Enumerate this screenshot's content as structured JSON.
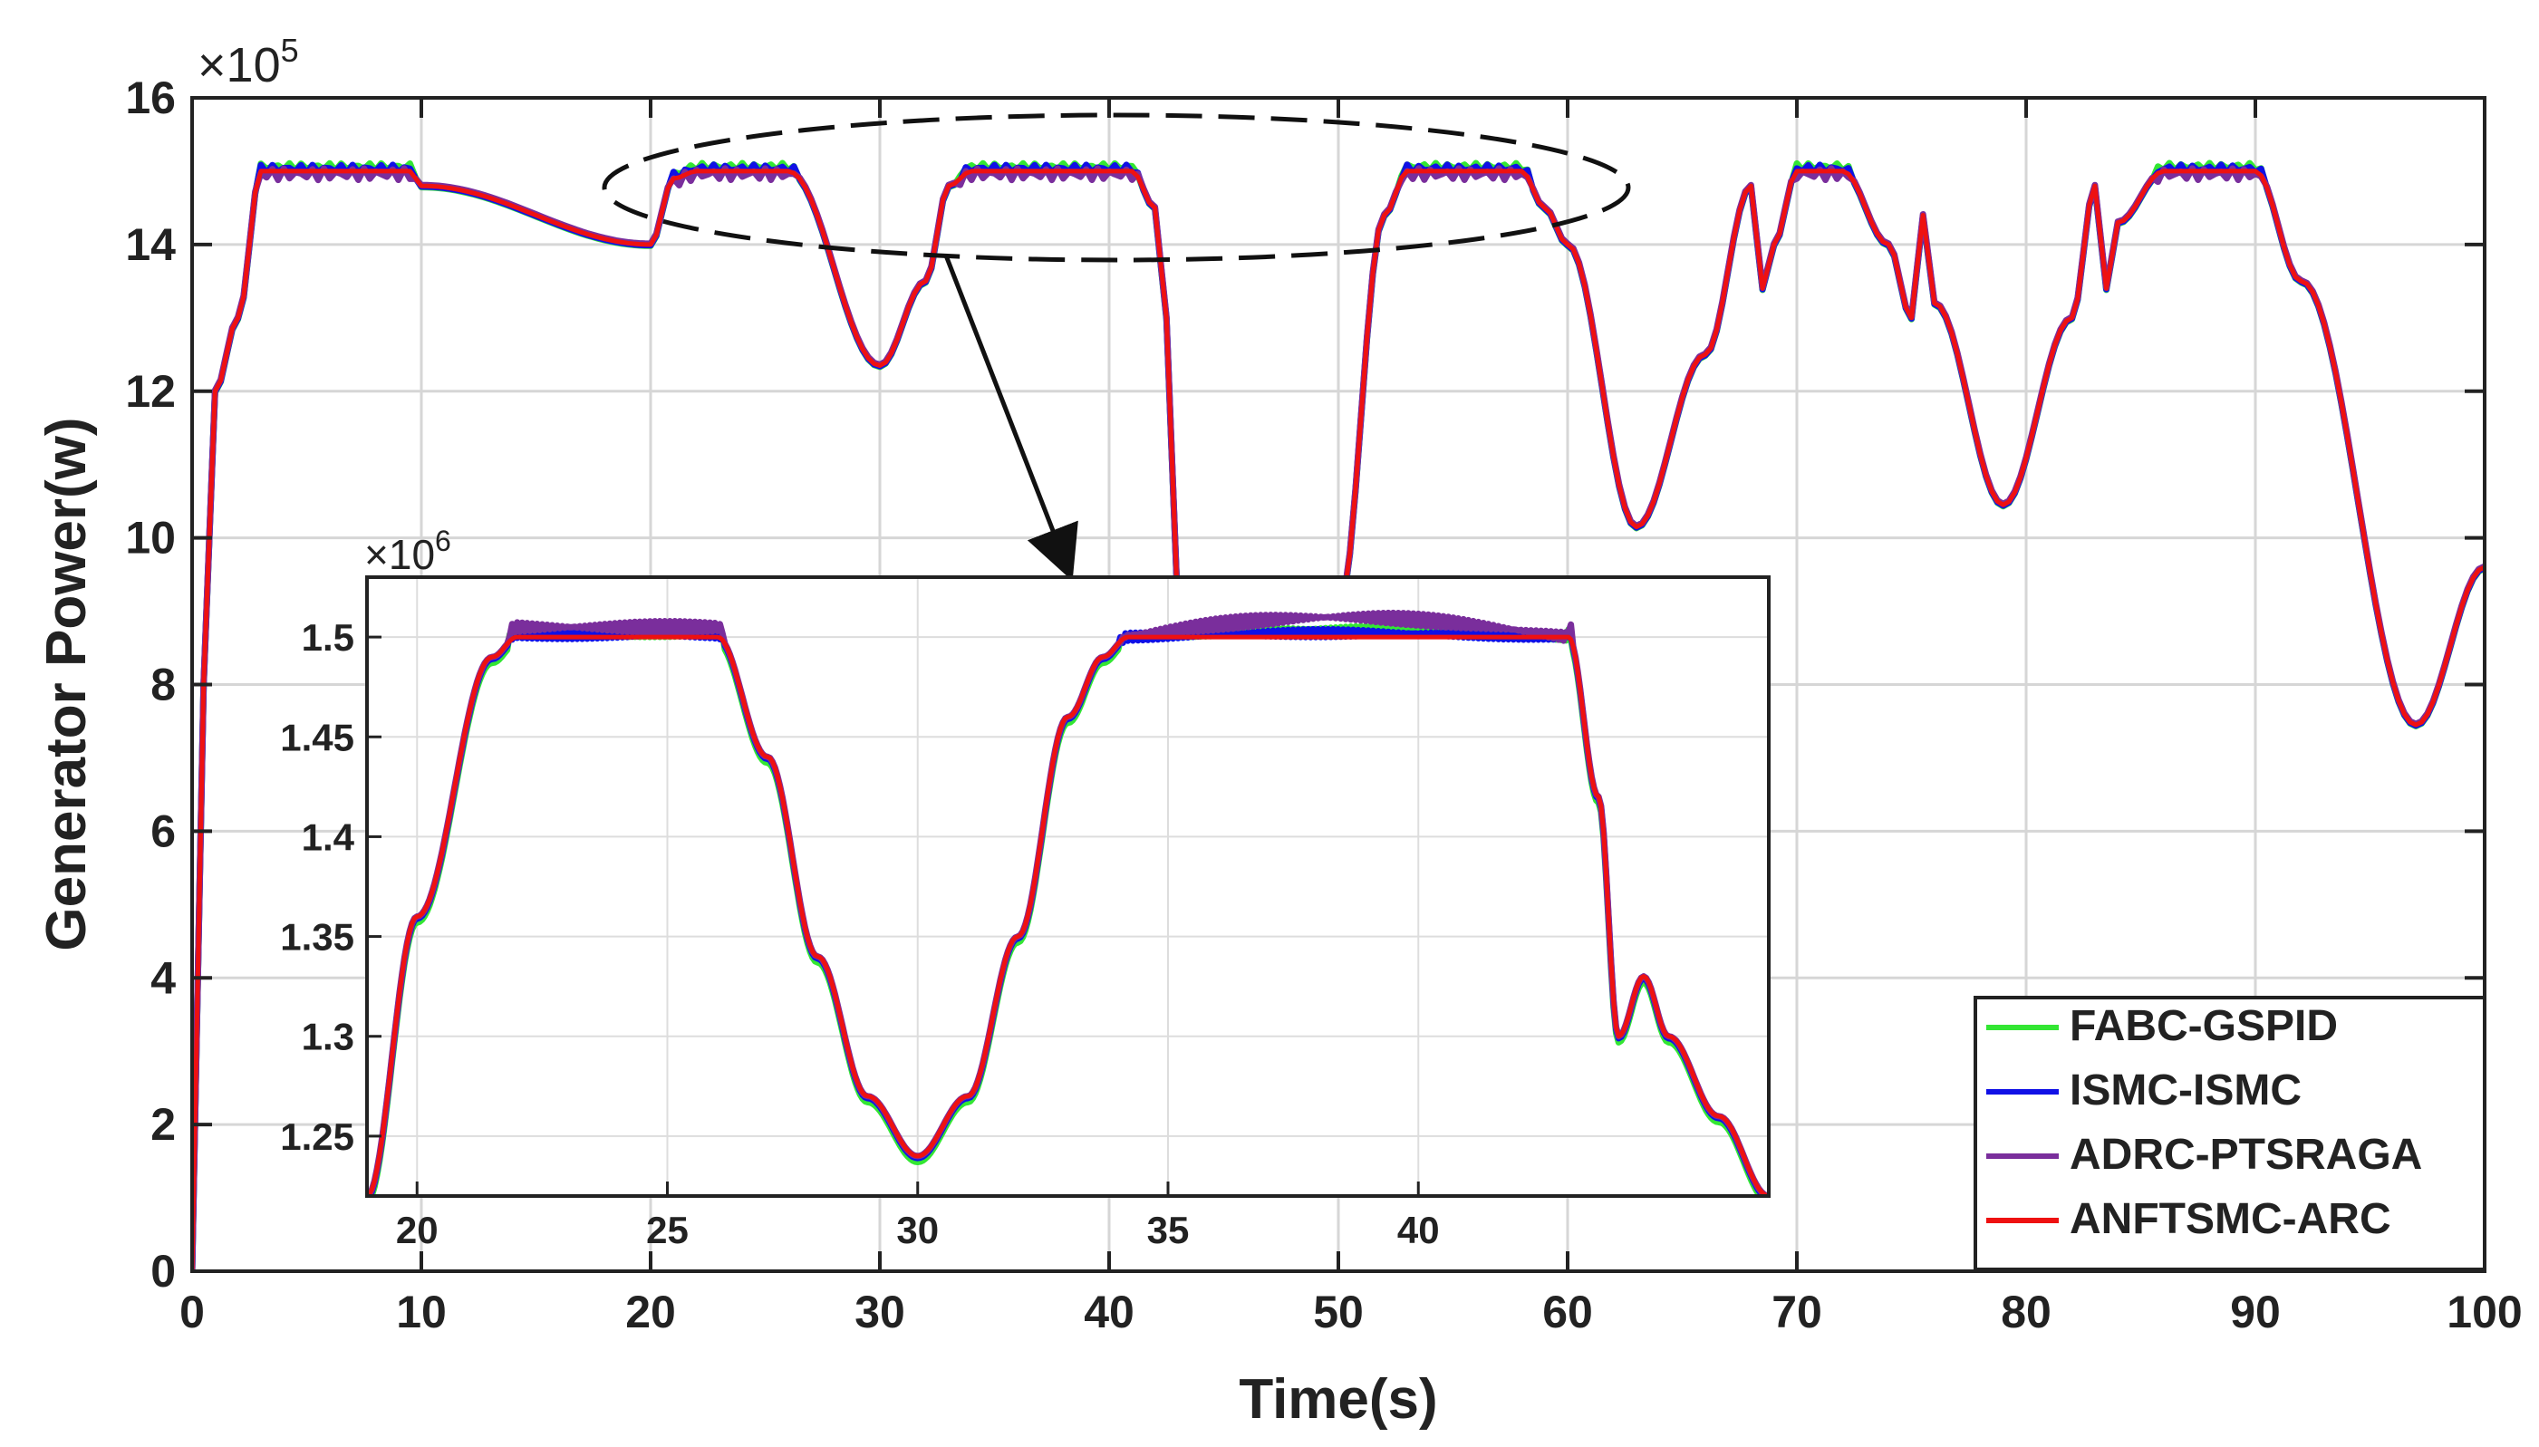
{
  "chart_data": {
    "type": "line",
    "xlabel": "Time(s)",
    "ylabel": "Generator Power(w)",
    "exponent_label": "×10",
    "exponent_power": "5",
    "xlim": [
      0,
      100
    ],
    "ylim": [
      0,
      16
    ],
    "x_ticks": [
      0,
      10,
      20,
      30,
      40,
      50,
      60,
      70,
      80,
      90,
      100
    ],
    "y_ticks": [
      0,
      2,
      4,
      6,
      8,
      10,
      12,
      14,
      16
    ],
    "grid": true,
    "legend_position": "bottom-right",
    "colors": {
      "FABC-GSPID": "#33e633",
      "ISMC-ISMC": "#1010e6",
      "ADRC-PTSRAGA": "#7a2e9c",
      "ANFTSMC-ARC": "#ee1111",
      "annotation": "#111111"
    },
    "series": [
      {
        "name": "FABC-GSPID"
      },
      {
        "name": "ISMC-ISMC"
      },
      {
        "name": "ADRC-PTSRAGA"
      },
      {
        "name": "ANFTSMC-ARC"
      }
    ],
    "main_curve": {
      "x": [
        0,
        0.5,
        1,
        2,
        3,
        9.5,
        10,
        20,
        21,
        22,
        25,
        26,
        30,
        32,
        33,
        34,
        41,
        42,
        42.5,
        43,
        50,
        52,
        53,
        58,
        59,
        60,
        63,
        66,
        68,
        68.5,
        69,
        70,
        72,
        74,
        75,
        75.5,
        76,
        79,
        82,
        83,
        83.5,
        84,
        86,
        90,
        92,
        97,
        100
      ],
      "y": [
        0,
        8,
        12,
        13,
        15,
        15,
        14.8,
        14,
        14.9,
        15,
        15,
        15,
        12.35,
        13.5,
        14.8,
        15,
        15,
        14.5,
        13,
        9,
        9,
        14.4,
        15,
        15,
        14.5,
        14,
        10.15,
        12.5,
        14.8,
        13.4,
        14,
        15,
        15,
        14,
        13,
        14.4,
        13.2,
        10.45,
        13,
        14.8,
        13.4,
        14.3,
        15,
        15,
        13.5,
        7.45,
        9.6
      ]
    },
    "inset": {
      "xlim": [
        19,
        47
      ],
      "ylim": [
        1.22,
        1.53
      ],
      "x_ticks": [
        20,
        25,
        30,
        35,
        40
      ],
      "y_ticks": [
        1.25,
        1.3,
        1.35,
        1.4,
        1.45,
        1.5
      ],
      "y_tick_labels": [
        "1.25",
        "1.3",
        "1.35",
        "1.4",
        "1.45",
        "1.5"
      ],
      "exponent_label": "×10",
      "exponent_power": "6",
      "x": [
        19,
        20,
        21.5,
        22,
        24,
        25,
        26,
        27,
        28,
        29,
        30,
        31,
        32,
        33,
        33.7,
        34.2,
        35,
        38,
        40,
        43,
        43.6,
        44,
        44.5,
        45,
        46,
        47
      ],
      "y": [
        1.22,
        1.36,
        1.49,
        1.5,
        1.5,
        1.5,
        1.5,
        1.44,
        1.34,
        1.27,
        1.24,
        1.27,
        1.35,
        1.46,
        1.49,
        1.5,
        1.5,
        1.5,
        1.5,
        1.5,
        1.42,
        1.3,
        1.33,
        1.3,
        1.26,
        1.22
      ]
    }
  }
}
